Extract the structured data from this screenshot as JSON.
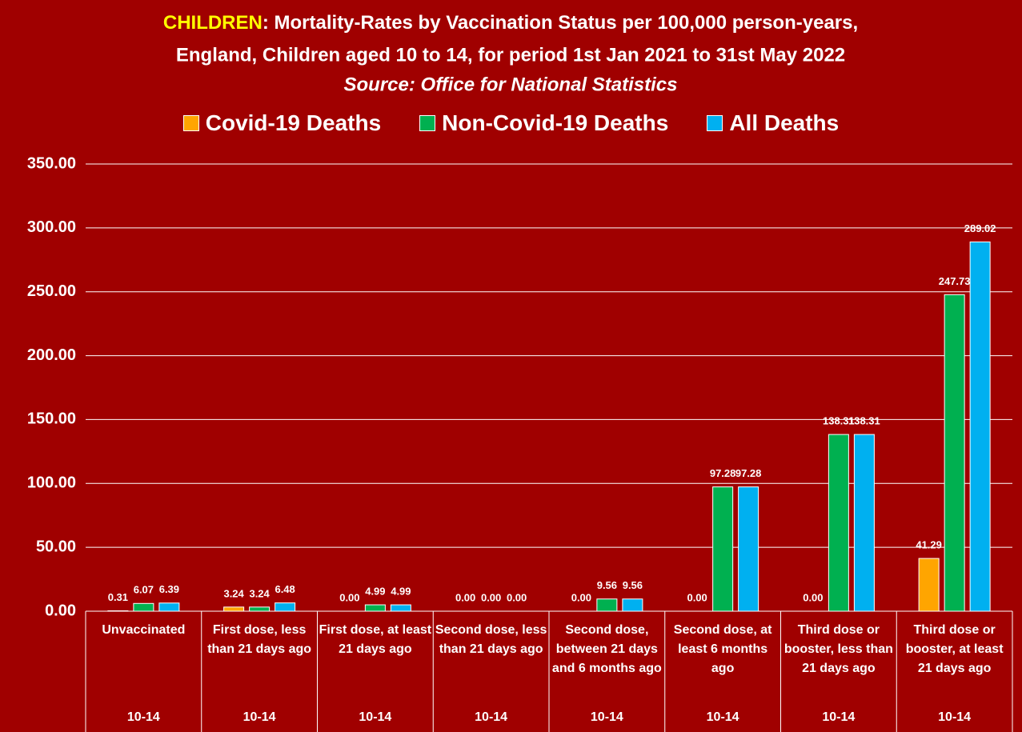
{
  "chart_data": {
    "type": "bar",
    "title": [
      "CHILDREN",
      ": Mortality-Rates by Vaccination Status per 100,000 person-years,",
      "England, Children aged 10 to 14, for period 1st Jan 2021 to 31st May 2022"
    ],
    "subtitle": "Source: Office for National Statistics",
    "categories": [
      "Unvaccinated",
      "First dose, less than 21 days ago",
      "First dose, at least 21 days ago",
      "Second dose, less than 21 days ago",
      "Second dose, between 21 days and 6 months ago",
      "Second dose, at least 6 months ago",
      "Third dose or booster, less than 21 days ago",
      "Third dose or booster, at least 21 days ago"
    ],
    "group_labels": [
      "10-14",
      "10-14",
      "10-14",
      "10-14",
      "10-14",
      "10-14",
      "10-14",
      "10-14"
    ],
    "series": [
      {
        "name": "Covid-19 Deaths",
        "color": "#ffa500",
        "values": [
          0.31,
          3.24,
          0,
          0,
          0,
          0,
          0,
          41.29
        ],
        "value_labels": [
          "0.31",
          "3.24",
          "0.00",
          "0.00",
          "0.00",
          "0.00",
          "0.00",
          "41.29"
        ]
      },
      {
        "name": "Non-Covid-19 Deaths",
        "color": "#00b050",
        "values": [
          6.07,
          3.24,
          4.99,
          0,
          9.56,
          97.28,
          138.31,
          247.73
        ],
        "value_labels": [
          "6.07",
          "3.24",
          "4.99",
          "0.00",
          "9.56",
          "97.28",
          "138.31",
          "247.73"
        ]
      },
      {
        "name": "All Deaths",
        "color": "#00b0f0",
        "values": [
          6.39,
          6.48,
          4.99,
          0,
          9.56,
          97.28,
          138.31,
          289.02
        ],
        "value_labels": [
          "6.39",
          "6.48",
          "4.99",
          "0.00",
          "9.56",
          "97.28",
          "138.31",
          "289.02"
        ]
      }
    ],
    "ylim": [
      0,
      350
    ],
    "yticks": [
      {
        "value": 0,
        "label": "0.00"
      },
      {
        "value": 50,
        "label": "50.00"
      },
      {
        "value": 100,
        "label": "100.00"
      },
      {
        "value": 150,
        "label": "150.00"
      },
      {
        "value": 200,
        "label": "200.00"
      },
      {
        "value": 250,
        "label": "250.00"
      },
      {
        "value": 300,
        "label": "300.00"
      },
      {
        "value": 350,
        "label": "350.00"
      }
    ],
    "grid": true
  }
}
